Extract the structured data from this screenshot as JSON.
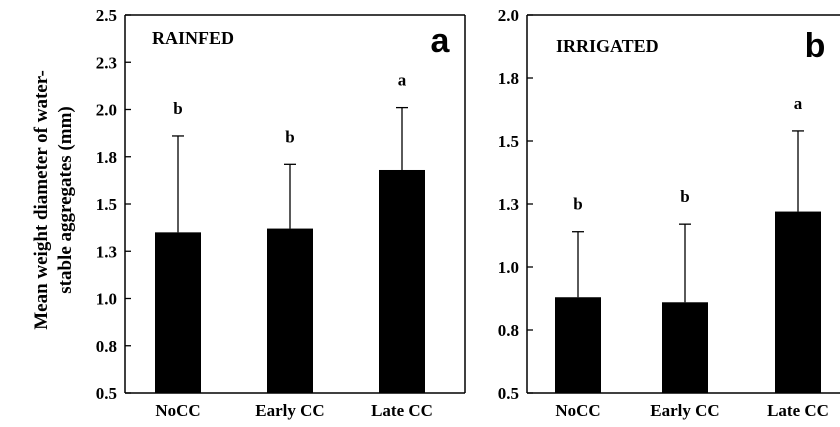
{
  "y_axis_label_lines": [
    "Mean weight diameter of water-",
    "stable aggregates (mm)"
  ],
  "chart_data": [
    {
      "type": "bar",
      "panel_title": "RAINFED",
      "panel_letter": "a",
      "categories": [
        "NoCC",
        "Early CC",
        "Late CC"
      ],
      "values": [
        1.35,
        1.37,
        1.68
      ],
      "error_upper": [
        1.86,
        1.71,
        2.01
      ],
      "significance_letters": [
        "b",
        "b",
        "a"
      ],
      "ylim": [
        0.5,
        2.5
      ],
      "yticks": [
        "0.5",
        "0.8",
        "1.0",
        "1.3",
        "1.5",
        "1.8",
        "2.0",
        "2.3",
        "2.5"
      ],
      "bar_color": "#000000"
    },
    {
      "type": "bar",
      "panel_title": "IRRIGATED",
      "panel_letter": "b",
      "categories": [
        "NoCC",
        "Early CC",
        "Late CC"
      ],
      "values": [
        0.88,
        0.86,
        1.22
      ],
      "error_upper": [
        1.14,
        1.17,
        1.54
      ],
      "significance_letters": [
        "b",
        "b",
        "a"
      ],
      "ylim": [
        0.5,
        2.0
      ],
      "yticks": [
        "0.5",
        "0.8",
        "1.0",
        "1.3",
        "1.5",
        "1.8",
        "2.0"
      ],
      "bar_color": "#000000"
    }
  ]
}
